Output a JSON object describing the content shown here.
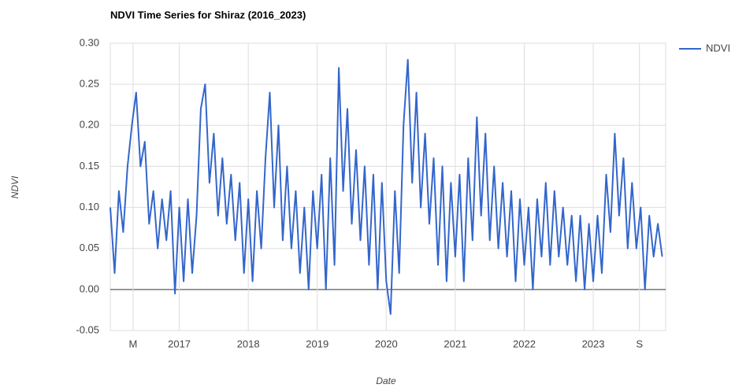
{
  "chart_data": {
    "type": "line",
    "title": "NDVI Time Series for Shiraz (2016_2023)",
    "x_label": "Date",
    "y_label": "NDVI",
    "x": [
      2016.0,
      2016.0625,
      2016.125,
      2016.1875,
      2016.25,
      2016.3125,
      2016.375,
      2016.4375,
      2016.5,
      2016.5625,
      2016.625,
      2016.6875,
      2016.75,
      2016.8125,
      2016.875,
      2016.9375,
      2017.0,
      2017.0625,
      2017.125,
      2017.1875,
      2017.25,
      2017.3125,
      2017.375,
      2017.4375,
      2017.5,
      2017.5625,
      2017.625,
      2017.6875,
      2017.75,
      2017.8125,
      2017.875,
      2017.9375,
      2018.0,
      2018.0625,
      2018.125,
      2018.1875,
      2018.25,
      2018.3125,
      2018.375,
      2018.4375,
      2018.5,
      2018.5625,
      2018.625,
      2018.6875,
      2018.75,
      2018.8125,
      2018.875,
      2018.9375,
      2019.0,
      2019.0625,
      2019.125,
      2019.1875,
      2019.25,
      2019.3125,
      2019.375,
      2019.4375,
      2019.5,
      2019.5625,
      2019.625,
      2019.6875,
      2019.75,
      2019.8125,
      2019.875,
      2019.9375,
      2020.0,
      2020.0625,
      2020.125,
      2020.1875,
      2020.25,
      2020.3125,
      2020.375,
      2020.4375,
      2020.5,
      2020.5625,
      2020.625,
      2020.6875,
      2020.75,
      2020.8125,
      2020.875,
      2020.9375,
      2021.0,
      2021.0625,
      2021.125,
      2021.1875,
      2021.25,
      2021.3125,
      2021.375,
      2021.4375,
      2021.5,
      2021.5625,
      2021.625,
      2021.6875,
      2021.75,
      2021.8125,
      2021.875,
      2021.9375,
      2022.0,
      2022.0625,
      2022.125,
      2022.1875,
      2022.25,
      2022.3125,
      2022.375,
      2022.4375,
      2022.5,
      2022.5625,
      2022.625,
      2022.6875,
      2022.75,
      2022.8125,
      2022.875,
      2022.9375,
      2023.0,
      2023.0625,
      2023.125,
      2023.1875,
      2023.25,
      2023.3125,
      2023.375,
      2023.4375,
      2023.5,
      2023.5625,
      2023.625,
      2023.6875,
      2023.75,
      2023.8125,
      2023.875,
      2023.9375,
      2024.0
    ],
    "series": [
      {
        "name": "NDVI",
        "color": "#3366cc",
        "values": [
          0.1,
          0.02,
          0.12,
          0.07,
          0.15,
          0.2,
          0.24,
          0.15,
          0.18,
          0.08,
          0.12,
          0.05,
          0.11,
          0.06,
          0.12,
          -0.005,
          0.1,
          0.01,
          0.11,
          0.02,
          0.09,
          0.22,
          0.25,
          0.13,
          0.19,
          0.09,
          0.16,
          0.08,
          0.14,
          0.06,
          0.13,
          0.02,
          0.11,
          0.01,
          0.12,
          0.05,
          0.16,
          0.24,
          0.1,
          0.2,
          0.06,
          0.15,
          0.05,
          0.12,
          0.02,
          0.1,
          0.0,
          0.12,
          0.05,
          0.14,
          0.0,
          0.16,
          0.03,
          0.27,
          0.12,
          0.22,
          0.08,
          0.17,
          0.06,
          0.15,
          0.03,
          0.14,
          0.0,
          0.13,
          0.01,
          -0.03,
          0.12,
          0.02,
          0.2,
          0.28,
          0.13,
          0.24,
          0.1,
          0.19,
          0.08,
          0.16,
          0.03,
          0.15,
          0.01,
          0.13,
          0.04,
          0.14,
          0.01,
          0.16,
          0.06,
          0.21,
          0.09,
          0.19,
          0.06,
          0.15,
          0.05,
          0.13,
          0.04,
          0.12,
          0.01,
          0.11,
          0.03,
          0.1,
          0.0,
          0.11,
          0.04,
          0.13,
          0.03,
          0.12,
          0.04,
          0.1,
          0.03,
          0.09,
          0.01,
          0.09,
          0.0,
          0.08,
          0.01,
          0.09,
          0.02,
          0.14,
          0.07,
          0.19,
          0.09,
          0.16,
          0.05,
          0.13,
          0.05,
          0.1,
          0.0,
          0.09,
          0.04,
          0.08,
          0.04
        ]
      }
    ],
    "xlim": [
      2016.0,
      2024.05
    ],
    "xticks": [
      {
        "value": 2016.33,
        "label": "M"
      },
      2017,
      2018,
      2019,
      2020,
      2021,
      2022,
      2023,
      {
        "value": 2023.67,
        "label": "S"
      }
    ],
    "ylim": [
      -0.05,
      0.3
    ],
    "yticks": [
      {
        "value": -0.05,
        "label": "-0.05"
      },
      {
        "value": 0,
        "label": "0.00"
      },
      {
        "value": 0.05,
        "label": "0.05"
      },
      {
        "value": 0.1,
        "label": "0.10"
      },
      {
        "value": 0.15,
        "label": "0.15"
      },
      {
        "value": 0.2,
        "label": "0.20"
      },
      {
        "value": 0.25,
        "label": "0.25"
      },
      {
        "value": 0.3,
        "label": "0.30"
      }
    ],
    "grid": true,
    "legend": "right"
  }
}
